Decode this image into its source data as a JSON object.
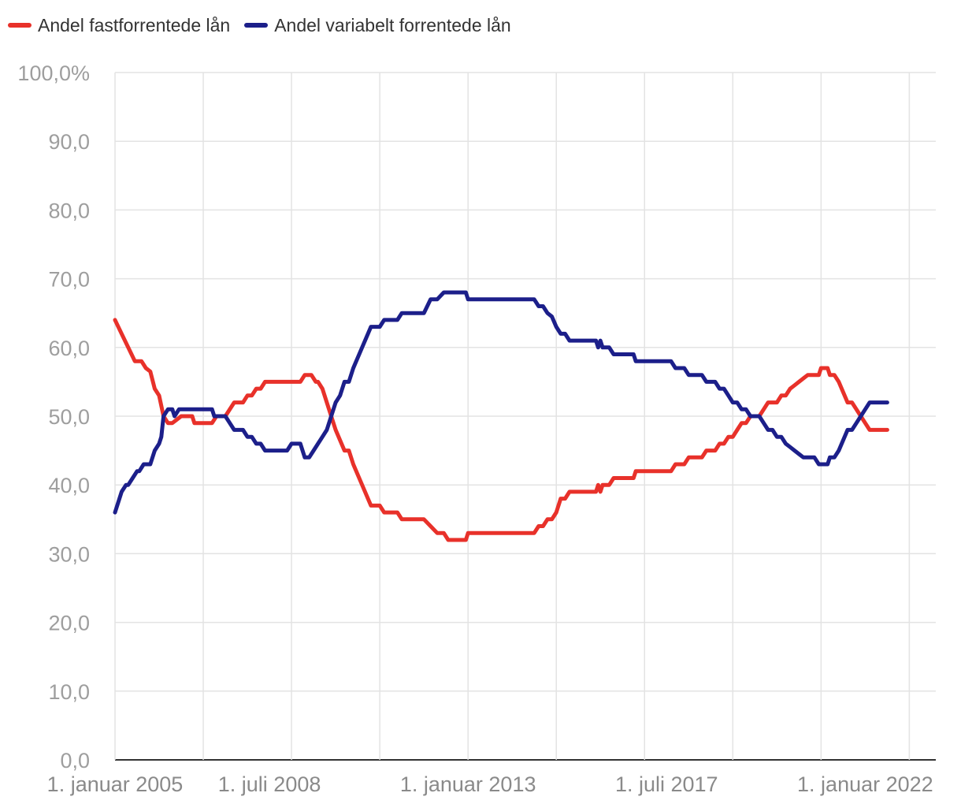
{
  "chart_data": {
    "type": "line",
    "title": "",
    "xlabel": "",
    "ylabel": "",
    "ylim": [
      0,
      100
    ],
    "yticks": [
      {
        "value": 0,
        "label": "0,0"
      },
      {
        "value": 10,
        "label": "10,0"
      },
      {
        "value": 20,
        "label": "20,0"
      },
      {
        "value": 30,
        "label": "30,0"
      },
      {
        "value": 40,
        "label": "40,0"
      },
      {
        "value": 50,
        "label": "50,0"
      },
      {
        "value": 60,
        "label": "60,0"
      },
      {
        "value": 70,
        "label": "70,0"
      },
      {
        "value": 80,
        "label": "80,0"
      },
      {
        "value": 90,
        "label": "90,0"
      },
      {
        "value": 100,
        "label": "100,0%"
      }
    ],
    "xlim": [
      2005.0,
      2023.6
    ],
    "xgrid": [
      2005.0,
      2007.0,
      2009.0,
      2011.0,
      2013.0,
      2015.0,
      2017.0,
      2019.0,
      2021.0,
      2023.0
    ],
    "xticks": [
      {
        "value": 2005.0,
        "label": "1. januar 2005"
      },
      {
        "value": 2008.5,
        "label": "1. juli 2008"
      },
      {
        "value": 2013.0,
        "label": "1. januar 2013"
      },
      {
        "value": 2017.5,
        "label": "1. juli 2017"
      },
      {
        "value": 2022.0,
        "label": "1. januar 2022"
      }
    ],
    "legend_position": "top-left",
    "series": [
      {
        "name": "Andel fastforrentede lån",
        "color": "#e8312a",
        "points": [
          [
            2005.0,
            64
          ],
          [
            2005.15,
            62
          ],
          [
            2005.3,
            60
          ],
          [
            2005.45,
            58
          ],
          [
            2005.6,
            58
          ],
          [
            2005.7,
            57
          ],
          [
            2005.8,
            56.5
          ],
          [
            2005.9,
            54
          ],
          [
            2006.0,
            53
          ],
          [
            2006.1,
            50
          ],
          [
            2006.2,
            49
          ],
          [
            2006.3,
            49
          ],
          [
            2006.4,
            49.5
          ],
          [
            2006.5,
            50
          ],
          [
            2006.75,
            50
          ],
          [
            2006.8,
            49
          ],
          [
            2007.0,
            49
          ],
          [
            2007.2,
            49
          ],
          [
            2007.3,
            50
          ],
          [
            2007.5,
            50
          ],
          [
            2007.7,
            52
          ],
          [
            2007.9,
            52
          ],
          [
            2008.0,
            53
          ],
          [
            2008.1,
            53
          ],
          [
            2008.2,
            54
          ],
          [
            2008.3,
            54
          ],
          [
            2008.4,
            55
          ],
          [
            2008.6,
            55
          ],
          [
            2009.2,
            55
          ],
          [
            2009.3,
            56
          ],
          [
            2009.45,
            56
          ],
          [
            2009.55,
            55
          ],
          [
            2009.6,
            55
          ],
          [
            2009.7,
            54
          ],
          [
            2009.8,
            52
          ],
          [
            2009.9,
            50
          ],
          [
            2010.0,
            48
          ],
          [
            2010.2,
            45
          ],
          [
            2010.3,
            45
          ],
          [
            2010.4,
            43
          ],
          [
            2010.6,
            40
          ],
          [
            2010.8,
            37
          ],
          [
            2011.0,
            37
          ],
          [
            2011.1,
            36
          ],
          [
            2011.4,
            36
          ],
          [
            2011.5,
            35
          ],
          [
            2011.8,
            35
          ],
          [
            2012.0,
            35
          ],
          [
            2012.15,
            34
          ],
          [
            2012.3,
            33
          ],
          [
            2012.45,
            33
          ],
          [
            2012.55,
            32
          ],
          [
            2012.8,
            32
          ],
          [
            2012.95,
            32
          ],
          [
            2013.0,
            33
          ],
          [
            2013.3,
            33
          ],
          [
            2014.5,
            33
          ],
          [
            2014.6,
            34
          ],
          [
            2014.7,
            34
          ],
          [
            2014.8,
            35
          ],
          [
            2014.9,
            35
          ],
          [
            2015.0,
            36
          ],
          [
            2015.1,
            38
          ],
          [
            2015.2,
            38
          ],
          [
            2015.3,
            39
          ],
          [
            2015.6,
            39
          ],
          [
            2015.9,
            39
          ],
          [
            2015.95,
            40
          ],
          [
            2016.0,
            39
          ],
          [
            2016.05,
            40
          ],
          [
            2016.2,
            40
          ],
          [
            2016.3,
            41
          ],
          [
            2016.6,
            41
          ],
          [
            2016.75,
            41
          ],
          [
            2016.8,
            42
          ],
          [
            2017.0,
            42
          ],
          [
            2017.6,
            42
          ],
          [
            2017.7,
            43
          ],
          [
            2017.9,
            43
          ],
          [
            2018.0,
            44
          ],
          [
            2018.3,
            44
          ],
          [
            2018.4,
            45
          ],
          [
            2018.6,
            45
          ],
          [
            2018.7,
            46
          ],
          [
            2018.8,
            46
          ],
          [
            2018.9,
            47
          ],
          [
            2019.0,
            47
          ],
          [
            2019.1,
            48
          ],
          [
            2019.2,
            49
          ],
          [
            2019.3,
            49
          ],
          [
            2019.4,
            50
          ],
          [
            2019.5,
            50
          ],
          [
            2019.6,
            50
          ],
          [
            2019.7,
            51
          ],
          [
            2019.8,
            52
          ],
          [
            2019.9,
            52
          ],
          [
            2020.0,
            52
          ],
          [
            2020.1,
            53
          ],
          [
            2020.2,
            53
          ],
          [
            2020.3,
            54
          ],
          [
            2020.4,
            54.5
          ],
          [
            2020.5,
            55
          ],
          [
            2020.6,
            55.5
          ],
          [
            2020.7,
            56
          ],
          [
            2020.85,
            56
          ],
          [
            2020.95,
            56
          ],
          [
            2021.0,
            57
          ],
          [
            2021.15,
            57
          ],
          [
            2021.2,
            56
          ],
          [
            2021.3,
            56
          ],
          [
            2021.4,
            55
          ],
          [
            2021.5,
            53.5
          ],
          [
            2021.6,
            52
          ],
          [
            2021.7,
            52
          ],
          [
            2021.8,
            51
          ],
          [
            2021.9,
            50
          ],
          [
            2022.0,
            49
          ],
          [
            2022.1,
            48
          ],
          [
            2022.5,
            48
          ]
        ]
      },
      {
        "name": "Andel variabelt forrentede lån",
        "color": "#1c1f8a",
        "points": [
          [
            2005.0,
            36
          ],
          [
            2005.05,
            37
          ],
          [
            2005.15,
            39
          ],
          [
            2005.25,
            40
          ],
          [
            2005.3,
            40
          ],
          [
            2005.4,
            41
          ],
          [
            2005.5,
            42
          ],
          [
            2005.55,
            42
          ],
          [
            2005.65,
            43
          ],
          [
            2005.8,
            43
          ],
          [
            2005.9,
            45
          ],
          [
            2006.0,
            46
          ],
          [
            2006.05,
            47
          ],
          [
            2006.1,
            50
          ],
          [
            2006.2,
            51
          ],
          [
            2006.3,
            51
          ],
          [
            2006.35,
            50
          ],
          [
            2006.45,
            51
          ],
          [
            2006.6,
            51
          ],
          [
            2006.8,
            51
          ],
          [
            2007.1,
            51
          ],
          [
            2007.2,
            51
          ],
          [
            2007.25,
            50
          ],
          [
            2007.5,
            50
          ],
          [
            2007.6,
            49
          ],
          [
            2007.7,
            48
          ],
          [
            2007.9,
            48
          ],
          [
            2008.0,
            47
          ],
          [
            2008.1,
            47
          ],
          [
            2008.2,
            46
          ],
          [
            2008.3,
            46
          ],
          [
            2008.4,
            45
          ],
          [
            2008.6,
            45
          ],
          [
            2008.9,
            45
          ],
          [
            2009.0,
            46
          ],
          [
            2009.2,
            46
          ],
          [
            2009.3,
            44
          ],
          [
            2009.4,
            44
          ],
          [
            2009.5,
            45
          ],
          [
            2009.6,
            46
          ],
          [
            2009.7,
            47
          ],
          [
            2009.8,
            48
          ],
          [
            2009.9,
            50
          ],
          [
            2010.0,
            52
          ],
          [
            2010.1,
            53
          ],
          [
            2010.2,
            55
          ],
          [
            2010.3,
            55
          ],
          [
            2010.4,
            57
          ],
          [
            2010.6,
            60
          ],
          [
            2010.8,
            63
          ],
          [
            2010.9,
            63
          ],
          [
            2011.0,
            63
          ],
          [
            2011.1,
            64
          ],
          [
            2011.4,
            64
          ],
          [
            2011.5,
            65
          ],
          [
            2011.8,
            65
          ],
          [
            2012.0,
            65
          ],
          [
            2012.15,
            67
          ],
          [
            2012.3,
            67
          ],
          [
            2012.45,
            68
          ],
          [
            2012.6,
            68
          ],
          [
            2012.95,
            68
          ],
          [
            2013.0,
            67
          ],
          [
            2013.3,
            67
          ],
          [
            2014.5,
            67
          ],
          [
            2014.6,
            66
          ],
          [
            2014.7,
            66
          ],
          [
            2014.8,
            65
          ],
          [
            2014.9,
            64.5
          ],
          [
            2015.0,
            63
          ],
          [
            2015.1,
            62
          ],
          [
            2015.2,
            62
          ],
          [
            2015.3,
            61
          ],
          [
            2015.6,
            61
          ],
          [
            2015.9,
            61
          ],
          [
            2015.95,
            60
          ],
          [
            2016.0,
            61
          ],
          [
            2016.05,
            60
          ],
          [
            2016.2,
            60
          ],
          [
            2016.3,
            59
          ],
          [
            2016.6,
            59
          ],
          [
            2016.75,
            59
          ],
          [
            2016.8,
            58
          ],
          [
            2017.0,
            58
          ],
          [
            2017.6,
            58
          ],
          [
            2017.7,
            57
          ],
          [
            2017.9,
            57
          ],
          [
            2018.0,
            56
          ],
          [
            2018.3,
            56
          ],
          [
            2018.4,
            55
          ],
          [
            2018.6,
            55
          ],
          [
            2018.7,
            54
          ],
          [
            2018.8,
            54
          ],
          [
            2018.9,
            53
          ],
          [
            2019.0,
            52
          ],
          [
            2019.1,
            52
          ],
          [
            2019.2,
            51
          ],
          [
            2019.3,
            51
          ],
          [
            2019.4,
            50
          ],
          [
            2019.5,
            50
          ],
          [
            2019.6,
            50
          ],
          [
            2019.7,
            49
          ],
          [
            2019.8,
            48
          ],
          [
            2019.9,
            48
          ],
          [
            2020.0,
            47
          ],
          [
            2020.1,
            47
          ],
          [
            2020.2,
            46
          ],
          [
            2020.3,
            45.5
          ],
          [
            2020.4,
            45
          ],
          [
            2020.5,
            44.5
          ],
          [
            2020.6,
            44
          ],
          [
            2020.85,
            44
          ],
          [
            2020.95,
            43
          ],
          [
            2021.0,
            43
          ],
          [
            2021.15,
            43
          ],
          [
            2021.2,
            44
          ],
          [
            2021.3,
            44
          ],
          [
            2021.4,
            45
          ],
          [
            2021.5,
            46.5
          ],
          [
            2021.6,
            48
          ],
          [
            2021.7,
            48
          ],
          [
            2021.8,
            49
          ],
          [
            2021.9,
            50
          ],
          [
            2022.0,
            51
          ],
          [
            2022.1,
            52
          ],
          [
            2022.5,
            52
          ]
        ]
      }
    ]
  }
}
